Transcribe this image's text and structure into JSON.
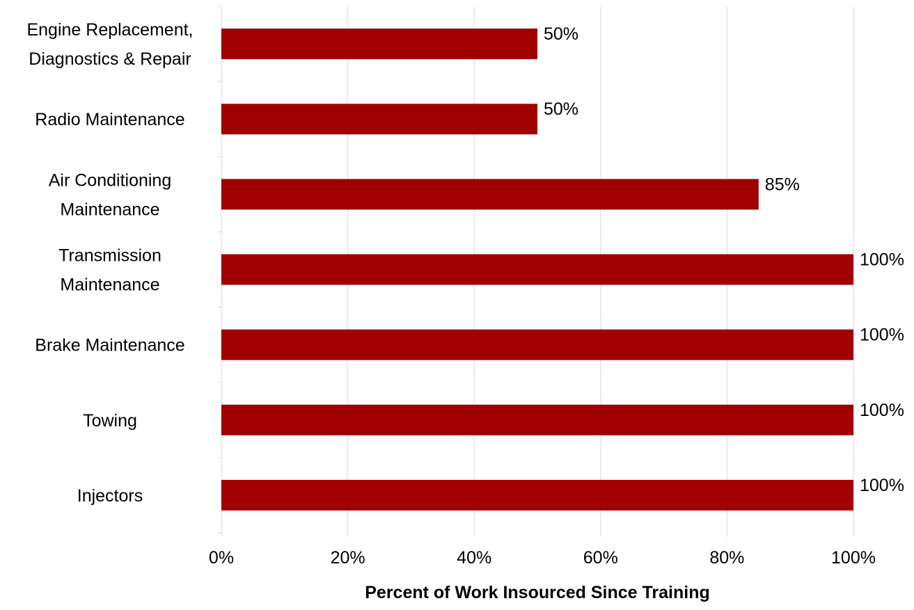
{
  "chart_data": {
    "type": "bar",
    "orientation": "horizontal",
    "categories": [
      [
        "Engine Replacement,",
        "Diagnostics & Repair"
      ],
      [
        "Radio Maintenance"
      ],
      [
        "Air Conditioning",
        "Maintenance"
      ],
      [
        "Transmission",
        "Maintenance"
      ],
      [
        "Brake Maintenance"
      ],
      [
        "Towing"
      ],
      [
        "Injectors"
      ]
    ],
    "values": [
      50,
      50,
      85,
      100,
      100,
      100,
      100
    ],
    "data_labels": [
      "50%",
      "50%",
      "85%",
      "100%",
      "100%",
      "100%",
      "100%"
    ],
    "xlabel": "Percent of Work Insourced Since Training",
    "ylabel": "",
    "xlim": [
      0,
      100
    ],
    "x_ticks": [
      0,
      20,
      40,
      60,
      80,
      100
    ],
    "x_tick_labels": [
      "0%",
      "20%",
      "40%",
      "60%",
      "80%",
      "100%"
    ],
    "grid": true,
    "legend": "none",
    "colors": {
      "bar": "#A00000",
      "grid": "#D9D9D9",
      "axis": "#D9D9D9",
      "text": "#000000"
    }
  }
}
